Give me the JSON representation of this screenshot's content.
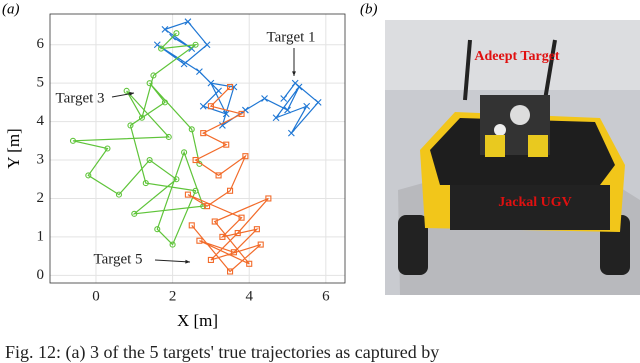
{
  "panel_a_label": "(a)",
  "panel_b_label": "(b)",
  "chart_data": {
    "type": "line",
    "xlabel": "X [m]",
    "ylabel": "Y [m]",
    "xlim": [
      -1.2,
      6.5
    ],
    "ylim": [
      -0.2,
      6.8
    ],
    "xticks": [
      0,
      2,
      4,
      6
    ],
    "yticks": [
      0,
      1,
      2,
      3,
      4,
      5,
      6
    ],
    "grid": true,
    "annotations": [
      "Target 1",
      "Target 3",
      "Target 5"
    ],
    "series": [
      {
        "color": "#1f77d4",
        "marker": "x",
        "x": [
          2.0,
          2.5,
          1.8,
          2.4,
          2.9,
          2.3,
          1.6,
          2.7,
          3.2,
          2.8,
          3.4,
          3.0,
          3.6,
          3.3,
          3.9,
          4.4,
          5.0,
          5.3,
          4.7,
          5.5,
          5.1,
          5.8,
          5.2,
          4.9
        ],
        "values": [
          6.2,
          5.9,
          6.4,
          6.6,
          6.0,
          5.5,
          6.0,
          5.3,
          4.8,
          4.4,
          4.2,
          5.0,
          4.9,
          3.9,
          4.3,
          4.6,
          4.3,
          4.9,
          4.1,
          4.4,
          3.7,
          4.5,
          5.0,
          4.6
        ]
      },
      {
        "color": "#5fc43a",
        "marker": "o",
        "x": [
          2.1,
          1.7,
          2.6,
          1.5,
          1.2,
          0.8,
          1.9,
          -0.6,
          0.3,
          -0.2,
          0.6,
          1.4,
          2.1,
          1.0,
          2.8,
          2.3,
          1.6,
          2.0,
          2.6,
          1.3,
          0.9,
          1.8,
          1.4,
          2.5,
          2.7
        ],
        "values": [
          6.3,
          5.9,
          6.0,
          5.2,
          4.1,
          4.8,
          3.6,
          3.5,
          3.3,
          2.6,
          2.1,
          3.0,
          2.5,
          1.6,
          1.8,
          3.2,
          1.2,
          0.8,
          2.2,
          2.4,
          3.9,
          4.5,
          5.0,
          3.8,
          2.9
        ]
      },
      {
        "color": "#f26b2a",
        "marker": "s",
        "x": [
          3.5,
          3.0,
          3.8,
          2.8,
          3.4,
          2.6,
          3.2,
          3.9,
          3.5,
          2.9,
          2.4,
          3.8,
          3.3,
          4.2,
          3.6,
          2.7,
          4.0,
          3.1,
          4.5,
          3.7,
          3.0,
          4.3,
          3.5,
          2.5
        ],
        "values": [
          4.9,
          4.4,
          4.2,
          3.7,
          3.4,
          3.0,
          2.6,
          3.1,
          2.2,
          1.8,
          2.1,
          1.5,
          1.0,
          1.2,
          0.6,
          0.9,
          0.3,
          1.4,
          2.0,
          1.1,
          0.4,
          0.8,
          0.1,
          1.3
        ]
      }
    ]
  },
  "photo": {
    "labels": [
      "Adeept Target",
      "Jackal UGV"
    ]
  },
  "caption": "Fig. 12: (a) 3 of the 5 targets' true trajectories as captured by"
}
